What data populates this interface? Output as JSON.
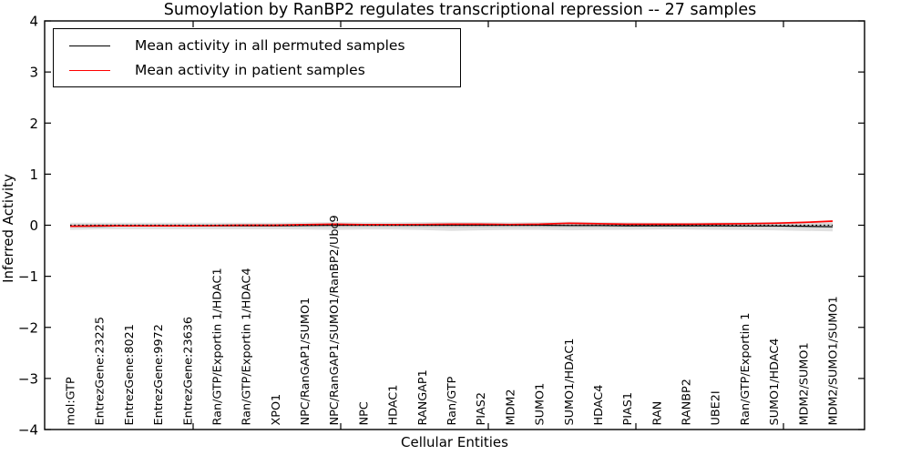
{
  "figure": {
    "title": "Sumoylation by RanBP2 regulates transcriptional repression -- 27 samples",
    "xlabel": "Cellular Entities",
    "ylabel": "Inferred Activity"
  },
  "legend": {
    "entries": [
      {
        "label": "Mean activity in all permuted samples",
        "color": "#000000"
      },
      {
        "label": "Mean activity in patient samples",
        "color": "#ff0000"
      }
    ]
  },
  "chart_data": {
    "type": "line",
    "title": "Sumoylation by RanBP2 regulates transcriptional repression -- 27 samples",
    "xlabel": "Cellular Entities",
    "ylabel": "Inferred Activity",
    "ylim": [
      -4,
      4
    ],
    "yticks": [
      4,
      3,
      2,
      1,
      0,
      -1,
      -2,
      -3,
      -4
    ],
    "ytick_labels": [
      "4",
      "3",
      "2",
      "1",
      "0",
      "−1",
      "−2",
      "−3",
      "−4"
    ],
    "grid": false,
    "legend_position": "upper left",
    "zero_reference_line": true,
    "categories": [
      "mol:GTP",
      "EntrezGene:23225",
      "EntrezGene:8021",
      "EntrezGene:9972",
      "EntrezGene:23636",
      "Ran/GTP/Exportin 1/HDAC1",
      "Ran/GTP/Exportin 1/HDAC4",
      "XPO1",
      "NPC/RanGAP1/SUMO1",
      "NPC/RanGAP1/SUMO1/RanBP2/Ubc9",
      "NPC",
      "HDAC1",
      "RANGAP1",
      "Ran/GTP",
      "PIAS2",
      "MDM2",
      "SUMO1",
      "SUMO1/HDAC1",
      "HDAC4",
      "PIAS1",
      "RAN",
      "RANBP2",
      "UBE2I",
      "Ran/GTP/Exportin 1",
      "SUMO1/HDAC4",
      "MDM2/SUMO1",
      "MDM2/SUMO1/SUMO1"
    ],
    "series": [
      {
        "name": "Mean activity in all permuted samples",
        "color": "#000000",
        "style": "solid",
        "width": 1.2,
        "values": [
          -0.02,
          -0.02,
          -0.015,
          -0.015,
          -0.01,
          -0.01,
          -0.01,
          -0.01,
          -0.005,
          0.0,
          0.0,
          0.0,
          0.0,
          0.0,
          0.0,
          0.0,
          0.0,
          -0.005,
          -0.005,
          -0.01,
          -0.01,
          -0.01,
          -0.01,
          -0.015,
          -0.015,
          -0.02,
          -0.03
        ]
      },
      {
        "name": "Mean activity in patient samples",
        "color": "#ff0000",
        "style": "solid",
        "width": 1.7,
        "values": [
          -0.02,
          -0.01,
          -0.01,
          -0.01,
          -0.01,
          -0.005,
          0.0,
          0.0,
          0.01,
          0.02,
          0.01,
          0.01,
          0.015,
          0.02,
          0.02,
          0.015,
          0.02,
          0.04,
          0.03,
          0.02,
          0.02,
          0.02,
          0.025,
          0.03,
          0.04,
          0.055,
          0.08
        ]
      }
    ],
    "band": {
      "name": "permuted-samples-spread-band",
      "color": "#e1e1e1",
      "inner_color": "#cfcfcf",
      "hi": [
        0.05,
        0.05,
        0.05,
        0.05,
        0.05,
        0.05,
        0.05,
        0.05,
        0.055,
        0.06,
        0.055,
        0.055,
        0.06,
        0.065,
        0.06,
        0.055,
        0.06,
        0.07,
        0.06,
        0.055,
        0.05,
        0.05,
        0.055,
        0.06,
        0.065,
        0.07,
        0.08
      ],
      "lo": [
        -0.09,
        -0.08,
        -0.08,
        -0.08,
        -0.08,
        -0.08,
        -0.08,
        -0.08,
        -0.085,
        -0.09,
        -0.085,
        -0.085,
        -0.095,
        -0.11,
        -0.1,
        -0.09,
        -0.09,
        -0.1,
        -0.095,
        -0.09,
        -0.085,
        -0.085,
        -0.09,
        -0.095,
        -0.1,
        -0.11,
        -0.12
      ]
    }
  }
}
